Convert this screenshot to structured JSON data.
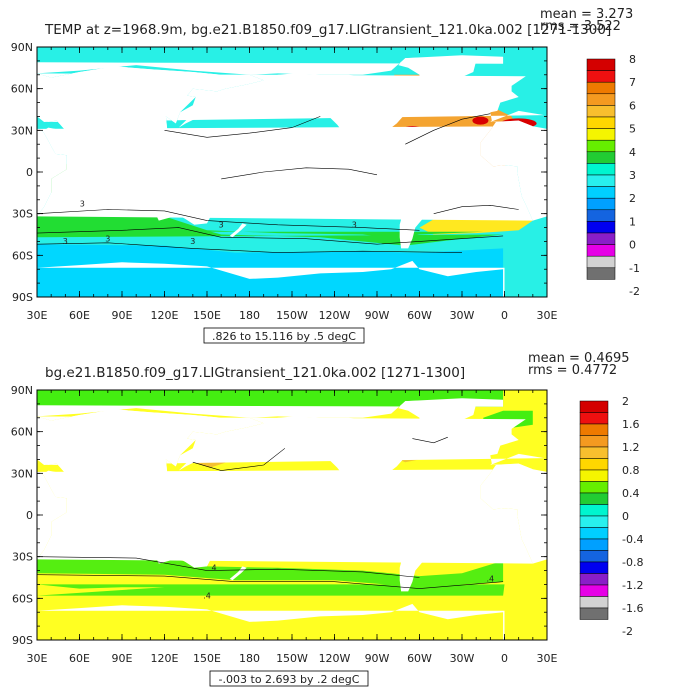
{
  "chart_data": [
    {
      "type": "heatmap",
      "title": "TEMP at z=1968.9m, bg.e21.B1850.f09_g17.LIGtransient_121.0ka.002 [1271-1300]",
      "stats": [
        "mean = 3.273",
        "rms = 3.522"
      ],
      "range_note": ".826 to 15.116 by .5 degC",
      "x_ticks": [
        "30E",
        "60E",
        "90E",
        "120E",
        "150E",
        "180",
        "150W",
        "120W",
        "90W",
        "60W",
        "30W",
        "0",
        "30E"
      ],
      "y_ticks": [
        "90N",
        "60N",
        "30N",
        "0",
        "30S",
        "60S",
        "90S"
      ],
      "colorbar_labels": [
        "8",
        "7",
        "6",
        "5",
        "4",
        "3",
        "2",
        "1",
        "0",
        "-1",
        "-2"
      ],
      "colorbar_colors": [
        "#d40000",
        "#ee1010",
        "#ee7a00",
        "#f49a20",
        "#f8bf2e",
        "#ffd700",
        "#f5f500",
        "#66ee00",
        "#22cc33",
        "#00f5cf",
        "#28f0ee",
        "#00cfff",
        "#00a0ff",
        "#1464e0",
        "#0000f0",
        "#8a1ec8",
        "#e600e6",
        "#d2d2d2",
        "#707070"
      ],
      "contour_labels": [
        "3",
        "3",
        "3",
        "3",
        "3",
        "3"
      ],
      "field_colors": {
        "pacific_indian": "#28f0e6",
        "atlantic": "#f4a431",
        "south_warm": "#ffe820",
        "southern_band": "#22dd33",
        "antarctic_cool": "#00d7ff",
        "arctic": "#28f0e6"
      }
    },
    {
      "type": "heatmap",
      "title": "bg.e21.B1850.f09_g17.LIGtransient_121.0ka.002 [1271-1300]",
      "stats": [
        "mean = 0.4695",
        "rms = 0.4772"
      ],
      "range_note": "-.003 to 2.693 by .2 degC",
      "x_ticks": [
        "30E",
        "60E",
        "90E",
        "120E",
        "150E",
        "180",
        "150W",
        "120W",
        "90W",
        "60W",
        "30W",
        "0",
        "30E"
      ],
      "y_ticks": [
        "90N",
        "60N",
        "30N",
        "0",
        "30S",
        "60S",
        "90S"
      ],
      "colorbar_labels": [
        "2",
        "1.6",
        "1.2",
        "0.8",
        "0.4",
        "0",
        "-0.4",
        "-0.8",
        "-1.2",
        "-1.6",
        "-2"
      ],
      "colorbar_colors": [
        "#d40000",
        "#ee1010",
        "#ee7a00",
        "#f49a20",
        "#f8bf2e",
        "#ffd700",
        "#f5f500",
        "#66ee00",
        "#22cc33",
        "#00f5cf",
        "#28f0ee",
        "#00cfff",
        "#00a0ff",
        "#1464e0",
        "#0000f0",
        "#8a1ec8",
        "#e600e6",
        "#d2d2d2",
        "#707070"
      ],
      "contour_labels": [
        "4",
        ".4",
        ".4"
      ],
      "field_colors": {
        "main": "#ffff22",
        "southern_band": "#55ee11",
        "arctic": "#44ee11",
        "north_pacific": "#f4c030",
        "labrador": "#f0c830"
      }
    }
  ]
}
